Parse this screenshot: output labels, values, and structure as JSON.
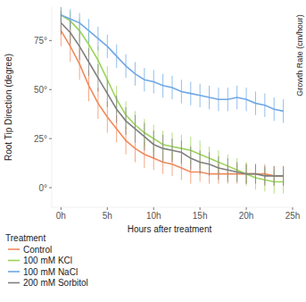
{
  "chart_data": {
    "type": "line",
    "x_label": "Hours after treatment",
    "y_label": "Root Tip Direction (degree)",
    "legend_title": "Treatment",
    "legend": "bottom-left",
    "grid": false,
    "annotations": [
      "Growth Rate (cm/hour)"
    ],
    "xlim": [
      -1,
      25
    ],
    "xticks": [
      {
        "value": 0,
        "label": "0h"
      },
      {
        "value": 5,
        "label": "5h"
      },
      {
        "value": 10,
        "label": "10h"
      },
      {
        "value": 15,
        "label": "15h"
      },
      {
        "value": 20,
        "label": "20h"
      },
      {
        "value": 25,
        "label": "25h"
      }
    ],
    "ylim": [
      -10,
      92
    ],
    "yticks": [
      {
        "value": 0,
        "label": "0°"
      },
      {
        "value": 25,
        "label": "25°"
      },
      {
        "value": 50,
        "label": "50°"
      },
      {
        "value": 75,
        "label": "75°"
      }
    ],
    "x": [
      0,
      1,
      2,
      3,
      4,
      5,
      6,
      7,
      8,
      9,
      10,
      11,
      12,
      13,
      14,
      15,
      16,
      17,
      18,
      19,
      20,
      21,
      22,
      23,
      24
    ],
    "series": [
      {
        "name": "Control",
        "color": "#f08a5d",
        "values": [
          80,
          72,
          63,
          52,
          43,
          36,
          30,
          24,
          20,
          17,
          15,
          13,
          12,
          10,
          8,
          8,
          7,
          7,
          7,
          7,
          7,
          7,
          7,
          6,
          6
        ],
        "errors": [
          8,
          8,
          8,
          8,
          8,
          8,
          7,
          7,
          7,
          7,
          6,
          6,
          6,
          6,
          6,
          5,
          5,
          5,
          5,
          5,
          5,
          5,
          5,
          5,
          5
        ]
      },
      {
        "name": "100 mM KCl",
        "color": "#9bd35a",
        "values": [
          88,
          85,
          80,
          73,
          65,
          55,
          45,
          37,
          32,
          28,
          25,
          22,
          21,
          20,
          19,
          17,
          15,
          13,
          11,
          9,
          7,
          5,
          4,
          3,
          3
        ],
        "errors": [
          4,
          5,
          6,
          6,
          7,
          7,
          7,
          7,
          7,
          7,
          7,
          7,
          7,
          7,
          7,
          7,
          6,
          6,
          6,
          6,
          6,
          6,
          6,
          6,
          6
        ]
      },
      {
        "name": "100 mM NaCl",
        "color": "#6fa8e6",
        "values": [
          88,
          86,
          84,
          80,
          76,
          72,
          67,
          62,
          58,
          55,
          54,
          52,
          51,
          49,
          48,
          47,
          46,
          45,
          45,
          46,
          45,
          43,
          42,
          40,
          39
        ],
        "errors": [
          4,
          5,
          5,
          6,
          6,
          6,
          6,
          6,
          6,
          6,
          6,
          6,
          6,
          6,
          6,
          6,
          6,
          6,
          6,
          6,
          6,
          6,
          6,
          6,
          6
        ]
      },
      {
        "name": "200 mM Sorbitol",
        "color": "#7f7f7f",
        "values": [
          84,
          79,
          72,
          64,
          56,
          48,
          40,
          34,
          30,
          26,
          22,
          20,
          19,
          18,
          15,
          13,
          12,
          10,
          9,
          8,
          7,
          7,
          6,
          6,
          6
        ],
        "errors": [
          6,
          6,
          7,
          7,
          7,
          7,
          7,
          7,
          7,
          7,
          7,
          7,
          6,
          6,
          6,
          6,
          6,
          6,
          6,
          5,
          5,
          5,
          5,
          5,
          5
        ]
      }
    ]
  }
}
